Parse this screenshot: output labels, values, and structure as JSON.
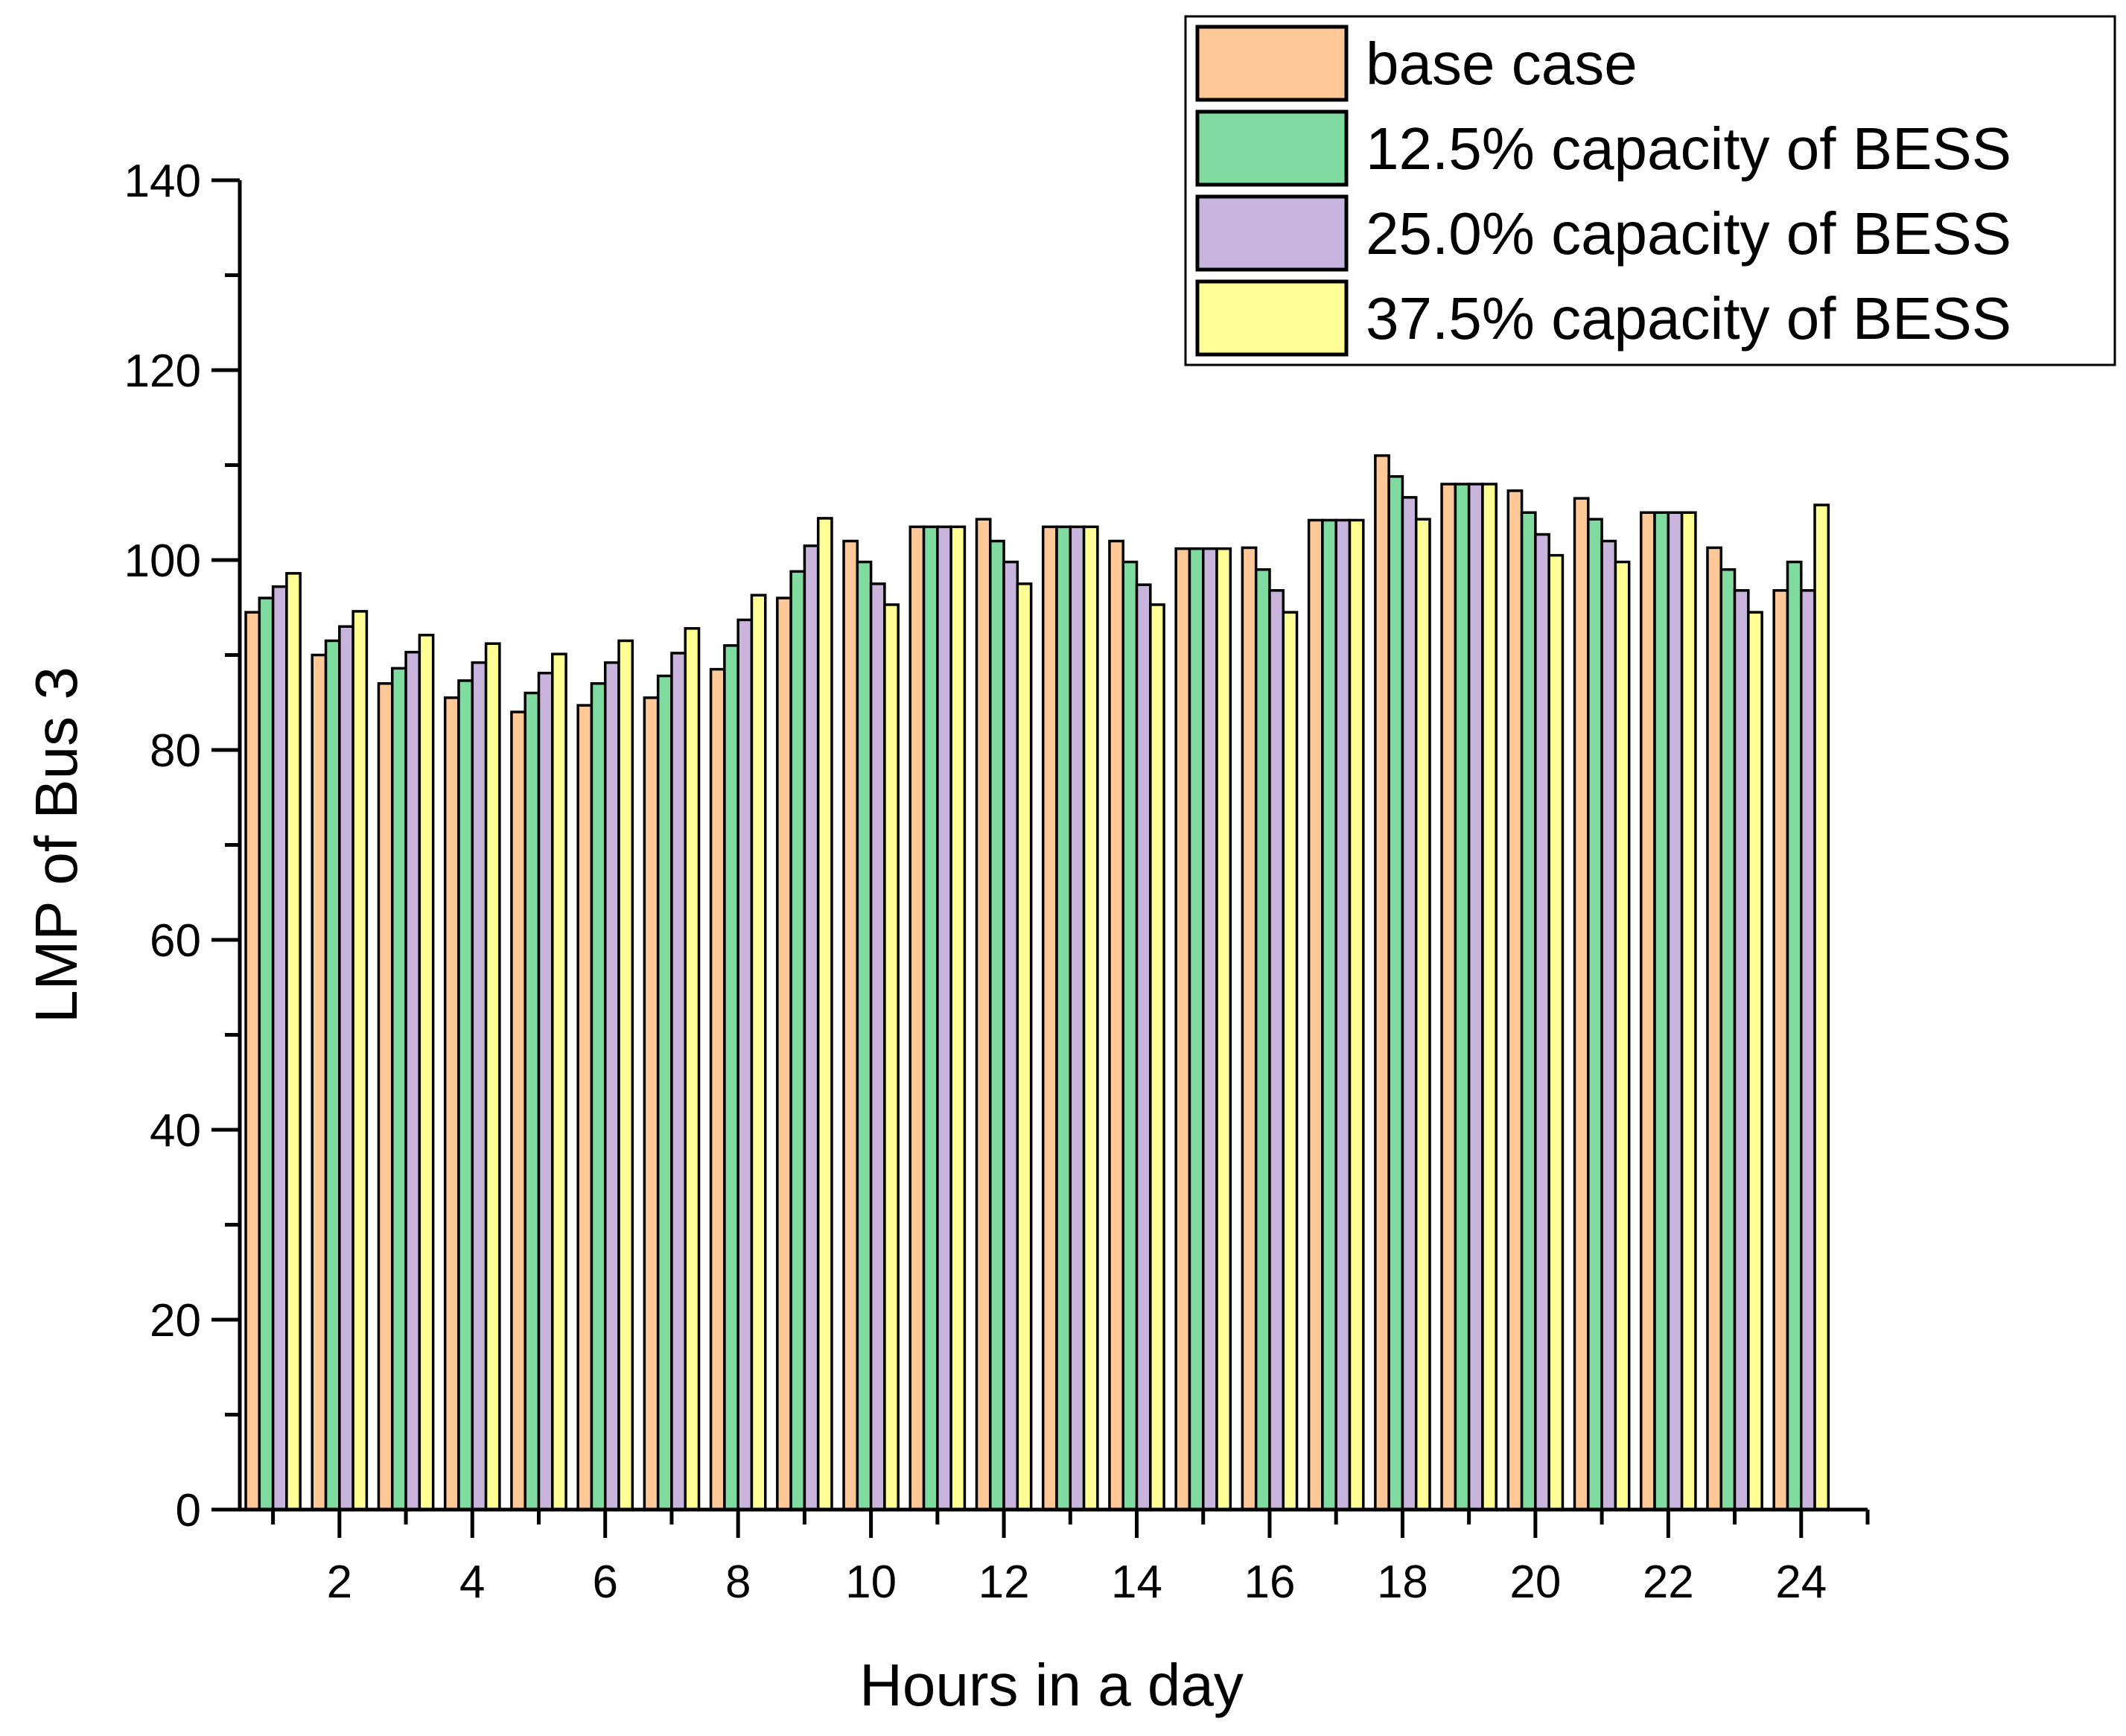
{
  "chart_data": {
    "type": "bar",
    "title": "",
    "xlabel": "Hours in a day",
    "ylabel": "LMP of Bus 3",
    "ylim": [
      0,
      140
    ],
    "yticks": [
      0,
      20,
      40,
      60,
      80,
      100,
      120,
      140
    ],
    "xticks": [
      2,
      4,
      6,
      8,
      10,
      12,
      14,
      16,
      18,
      20,
      22,
      24
    ],
    "xlim": [
      0.5,
      25.0
    ],
    "legend_position": "top-right",
    "categories": [
      1,
      2,
      3,
      4,
      5,
      6,
      7,
      8,
      9,
      10,
      11,
      12,
      13,
      14,
      15,
      16,
      17,
      18,
      19,
      20,
      21,
      22,
      23,
      24
    ],
    "series": [
      {
        "name": "base case",
        "color": "#FFC896",
        "values": [
          94.5,
          90,
          87,
          85.5,
          84,
          84.7,
          85.5,
          88.5,
          96,
          102,
          103.5,
          104.3,
          103.5,
          102,
          101.2,
          101.3,
          104.2,
          111,
          108,
          107.3,
          106.5,
          105,
          101.3,
          96.8
        ]
      },
      {
        "name": "12.5% capacity of BESS",
        "color": "#80DBA0",
        "values": [
          96,
          91.5,
          88.6,
          87.3,
          86,
          87,
          87.8,
          91,
          98.8,
          99.8,
          103.5,
          102,
          103.5,
          99.8,
          101.2,
          99,
          104.2,
          108.8,
          108,
          105,
          104.3,
          105,
          99,
          99.8
        ]
      },
      {
        "name": "25.0% capacity of BESS",
        "color": "#C8B4DC",
        "values": [
          97.2,
          93,
          90.3,
          89.2,
          88.1,
          89.2,
          90.2,
          93.7,
          101.5,
          97.5,
          103.5,
          99.8,
          103.5,
          97.4,
          101.2,
          96.8,
          104.2,
          106.6,
          108,
          102.7,
          102,
          105,
          96.8,
          96.8
        ]
      },
      {
        "name": "37.5% capacity of BESS",
        "color": "#FFFF96",
        "values": [
          98.6,
          94.6,
          92.1,
          91.2,
          90.1,
          91.5,
          92.8,
          96.3,
          104.4,
          95.3,
          103.5,
          97.5,
          103.5,
          95.3,
          101.2,
          94.5,
          104.2,
          104.3,
          108,
          100.5,
          99.8,
          105,
          94.5,
          105.8
        ]
      }
    ]
  }
}
